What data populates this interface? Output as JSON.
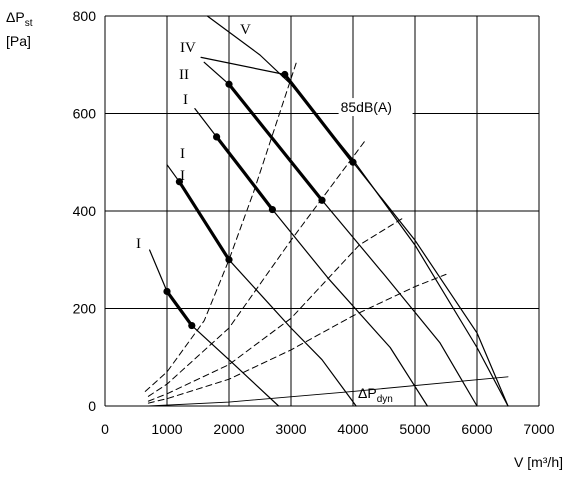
{
  "chart_data": {
    "type": "line",
    "title": "",
    "xlabel": "V [m³/h]",
    "ylabel": "ΔP",
    "ylabel_sub": "st",
    "ylabel_unit": "[Pa]",
    "xlim": [
      0,
      7000
    ],
    "ylim": [
      0,
      800
    ],
    "xticks": [
      0,
      1000,
      2000,
      3000,
      4000,
      5000,
      6000,
      7000
    ],
    "yticks": [
      0,
      200,
      400,
      600,
      800
    ],
    "grid": true,
    "series": [
      {
        "name": "I",
        "style": "solid",
        "x": [
          720,
          1000,
          1400,
          2000,
          2800
        ],
        "y": [
          320,
          235,
          165,
          95,
          0
        ]
      },
      {
        "name": "I I",
        "style": "solid",
        "x": [
          1000,
          1200,
          2000,
          3000,
          3500,
          4050
        ],
        "y": [
          495,
          460,
          300,
          160,
          95,
          0
        ]
      },
      {
        "name": "I",
        "style": "solid",
        "x": [
          1450,
          1800,
          2700,
          3600,
          4600,
          5200
        ],
        "y": [
          610,
          552,
          403,
          262,
          120,
          0
        ]
      },
      {
        "name": "II",
        "style": "solid",
        "x": [
          1600,
          2000,
          3500,
          4500,
          5400,
          6000
        ],
        "y": [
          705,
          660,
          422,
          270,
          130,
          0
        ]
      },
      {
        "name": "IV",
        "style": "solid",
        "x": [
          1550,
          2900,
          4000,
          5000,
          6000,
          6500
        ],
        "y": [
          715,
          680,
          500,
          340,
          150,
          0
        ]
      },
      {
        "name": "V",
        "style": "solid",
        "x": [
          1650,
          2500,
          3000,
          4000,
          5000,
          6000,
          6500
        ],
        "y": [
          800,
          720,
          660,
          505,
          330,
          120,
          0
        ]
      },
      {
        "name": "ΔP",
        "sub": "dyn",
        "style": "thin",
        "x": [
          700,
          2000,
          4000,
          6500
        ],
        "y": [
          0,
          8,
          30,
          60
        ]
      },
      {
        "name": "",
        "style": "dashed",
        "x": [
          650,
          1000,
          1600,
          2000,
          2400,
          3100
        ],
        "y": [
          30,
          70,
          175,
          300,
          440,
          710
        ]
      },
      {
        "name": "",
        "style": "dashed",
        "x": [
          700,
          1000,
          2000,
          3000,
          4200
        ],
        "y": [
          20,
          45,
          160,
          340,
          545
        ]
      },
      {
        "name": "",
        "style": "dashed",
        "x": [
          700,
          1000,
          2000,
          3000,
          4100,
          4800
        ],
        "y": [
          10,
          25,
          85,
          180,
          330,
          385
        ]
      },
      {
        "name": "",
        "style": "dashed",
        "x": [
          700,
          1000,
          2000,
          3000,
          4000,
          5000,
          5500
        ],
        "y": [
          6,
          15,
          55,
          115,
          185,
          245,
          270
        ]
      }
    ],
    "highlight_segments": [
      {
        "x": [
          1000,
          1200,
          1400
        ],
        "y": [
          235,
          200,
          165
        ]
      },
      {
        "x": [
          1200,
          1600,
          2000
        ],
        "y": [
          460,
          380,
          300
        ]
      },
      {
        "x": [
          1800,
          2250,
          2700
        ],
        "y": [
          552,
          478,
          403
        ]
      },
      {
        "x": [
          2000,
          2750,
          3500
        ],
        "y": [
          660,
          541,
          422
        ]
      },
      {
        "x": [
          2900,
          3450,
          4000
        ],
        "y": [
          680,
          590,
          500
        ]
      }
    ],
    "annotations": [
      {
        "text": "85dB(A)",
        "x": 3800,
        "y": 605
      }
    ]
  }
}
